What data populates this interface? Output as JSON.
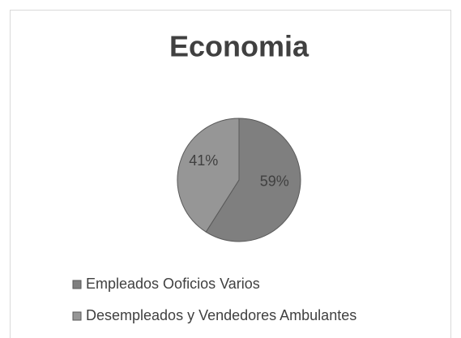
{
  "chart_data": {
    "type": "pie",
    "title": "Economia",
    "categories": [
      "Empleados Ooficios Varios",
      "Desempleados y Vendedores Ambulantes"
    ],
    "values": [
      59,
      41
    ],
    "value_labels": [
      "59%",
      "41%"
    ],
    "colors": [
      "#7f7f7f",
      "#969696"
    ],
    "legend": "bottom"
  }
}
